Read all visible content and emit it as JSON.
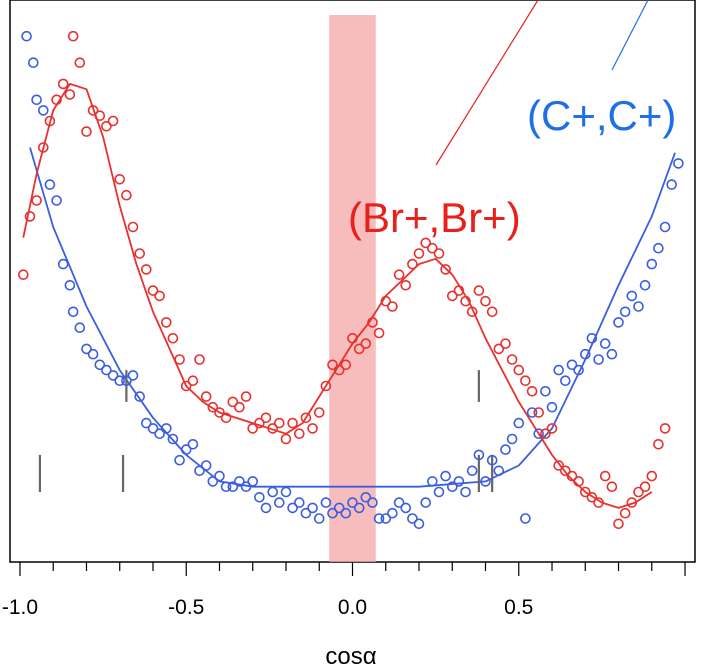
{
  "chart_data": {
    "type": "scatter",
    "title": "",
    "xlabel": "cosα",
    "ylabel": "",
    "xlim": [
      -1.03,
      1.03
    ],
    "ylim": [
      0,
      1
    ],
    "grid": false,
    "x_ticks": [
      "-1.0",
      "-0.5",
      "0.0",
      "0.5"
    ],
    "x_tick_values": [
      -1.0,
      -0.5,
      0.0,
      0.5
    ],
    "shaded_band": {
      "x": [
        -0.07,
        0.07
      ],
      "color": "#f4a6a6"
    },
    "series": [
      {
        "name": "(C+,C+)",
        "color": "#3b5ee0",
        "label_color": "#1f6fe8",
        "points": [
          [
            -0.98,
            0.96
          ],
          [
            -0.96,
            0.91
          ],
          [
            -0.95,
            0.84
          ],
          [
            -0.93,
            0.82
          ],
          [
            -0.91,
            0.68
          ],
          [
            -0.89,
            0.65
          ],
          [
            -0.87,
            0.53
          ],
          [
            -0.85,
            0.49
          ],
          [
            -0.84,
            0.44
          ],
          [
            -0.82,
            0.41
          ],
          [
            -0.8,
            0.37
          ],
          [
            -0.78,
            0.36
          ],
          [
            -0.76,
            0.34
          ],
          [
            -0.74,
            0.33
          ],
          [
            -0.72,
            0.32
          ],
          [
            -0.7,
            0.31
          ],
          [
            -0.68,
            0.31
          ],
          [
            -0.66,
            0.32
          ],
          [
            -0.64,
            0.28
          ],
          [
            -0.62,
            0.23
          ],
          [
            -0.6,
            0.22
          ],
          [
            -0.58,
            0.21
          ],
          [
            -0.56,
            0.22
          ],
          [
            -0.54,
            0.2
          ],
          [
            -0.52,
            0.16
          ],
          [
            -0.5,
            0.18
          ],
          [
            -0.48,
            0.19
          ],
          [
            -0.46,
            0.14
          ],
          [
            -0.44,
            0.15
          ],
          [
            -0.42,
            0.12
          ],
          [
            -0.4,
            0.13
          ],
          [
            -0.38,
            0.11
          ],
          [
            -0.36,
            0.11
          ],
          [
            -0.34,
            0.12
          ],
          [
            -0.32,
            0.11
          ],
          [
            -0.3,
            0.12
          ],
          [
            -0.28,
            0.09
          ],
          [
            -0.26,
            0.07
          ],
          [
            -0.24,
            0.1
          ],
          [
            -0.22,
            0.08
          ],
          [
            -0.2,
            0.1
          ],
          [
            -0.18,
            0.07
          ],
          [
            -0.16,
            0.08
          ],
          [
            -0.14,
            0.06
          ],
          [
            -0.12,
            0.07
          ],
          [
            -0.1,
            0.05
          ],
          [
            -0.08,
            0.08
          ],
          [
            -0.06,
            0.06
          ],
          [
            -0.04,
            0.07
          ],
          [
            -0.02,
            0.06
          ],
          [
            0.0,
            0.08
          ],
          [
            0.02,
            0.07
          ],
          [
            0.04,
            0.09
          ],
          [
            0.06,
            0.08
          ],
          [
            0.08,
            0.05
          ],
          [
            0.1,
            0.05
          ],
          [
            0.12,
            0.06
          ],
          [
            0.14,
            0.08
          ],
          [
            0.16,
            0.07
          ],
          [
            0.18,
            0.05
          ],
          [
            0.2,
            0.04
          ],
          [
            0.22,
            0.08
          ],
          [
            0.24,
            0.12
          ],
          [
            0.26,
            0.1
          ],
          [
            0.28,
            0.13
          ],
          [
            0.3,
            0.11
          ],
          [
            0.32,
            0.12
          ],
          [
            0.34,
            0.1
          ],
          [
            0.36,
            0.14
          ],
          [
            0.38,
            0.17
          ],
          [
            0.4,
            0.12
          ],
          [
            0.42,
            0.16
          ],
          [
            0.44,
            0.14
          ],
          [
            0.46,
            0.18
          ],
          [
            0.48,
            0.2
          ],
          [
            0.5,
            0.23
          ],
          [
            0.52,
            0.05
          ],
          [
            0.54,
            0.25
          ],
          [
            0.56,
            0.21
          ],
          [
            0.58,
            0.29
          ],
          [
            0.6,
            0.26
          ],
          [
            0.62,
            0.33
          ],
          [
            0.64,
            0.31
          ],
          [
            0.66,
            0.34
          ],
          [
            0.68,
            0.33
          ],
          [
            0.7,
            0.36
          ],
          [
            0.72,
            0.39
          ],
          [
            0.74,
            0.35
          ],
          [
            0.76,
            0.38
          ],
          [
            0.78,
            0.36
          ],
          [
            0.8,
            0.42
          ],
          [
            0.82,
            0.44
          ],
          [
            0.84,
            0.47
          ],
          [
            0.86,
            0.45
          ],
          [
            0.88,
            0.49
          ],
          [
            0.9,
            0.53
          ],
          [
            0.92,
            0.56
          ],
          [
            0.94,
            0.6
          ],
          [
            0.96,
            0.68
          ],
          [
            0.98,
            0.72
          ]
        ],
        "fit": [
          [
            -0.97,
            0.75
          ],
          [
            -0.9,
            0.6
          ],
          [
            -0.8,
            0.45
          ],
          [
            -0.7,
            0.33
          ],
          [
            -0.6,
            0.24
          ],
          [
            -0.5,
            0.17
          ],
          [
            -0.4,
            0.12
          ],
          [
            -0.3,
            0.11
          ],
          [
            -0.2,
            0.11
          ],
          [
            0.0,
            0.11
          ],
          [
            0.2,
            0.11
          ],
          [
            0.4,
            0.12
          ],
          [
            0.5,
            0.15
          ],
          [
            0.6,
            0.22
          ],
          [
            0.7,
            0.35
          ],
          [
            0.8,
            0.49
          ],
          [
            0.9,
            0.62
          ],
          [
            0.97,
            0.74
          ]
        ]
      },
      {
        "name": "(Br+,Br+)",
        "color": "#e8312f",
        "label_color": "#e8201c",
        "points": [
          [
            -0.99,
            0.51
          ],
          [
            -0.97,
            0.62
          ],
          [
            -0.95,
            0.65
          ],
          [
            -0.93,
            0.75
          ],
          [
            -0.91,
            0.8
          ],
          [
            -0.89,
            0.84
          ],
          [
            -0.87,
            0.87
          ],
          [
            -0.85,
            0.85
          ],
          [
            -0.84,
            0.96
          ],
          [
            -0.82,
            0.91
          ],
          [
            -0.8,
            0.78
          ],
          [
            -0.78,
            0.82
          ],
          [
            -0.76,
            0.81
          ],
          [
            -0.74,
            0.79
          ],
          [
            -0.72,
            0.8
          ],
          [
            -0.7,
            0.69
          ],
          [
            -0.68,
            0.66
          ],
          [
            -0.66,
            0.6
          ],
          [
            -0.64,
            0.55
          ],
          [
            -0.62,
            0.52
          ],
          [
            -0.6,
            0.48
          ],
          [
            -0.58,
            0.47
          ],
          [
            -0.56,
            0.42
          ],
          [
            -0.54,
            0.39
          ],
          [
            -0.52,
            0.35
          ],
          [
            -0.5,
            0.3
          ],
          [
            -0.48,
            0.31
          ],
          [
            -0.46,
            0.35
          ],
          [
            -0.44,
            0.28
          ],
          [
            -0.42,
            0.26
          ],
          [
            -0.4,
            0.25
          ],
          [
            -0.38,
            0.24
          ],
          [
            -0.36,
            0.27
          ],
          [
            -0.34,
            0.26
          ],
          [
            -0.32,
            0.28
          ],
          [
            -0.3,
            0.22
          ],
          [
            -0.28,
            0.23
          ],
          [
            -0.26,
            0.24
          ],
          [
            -0.24,
            0.22
          ],
          [
            -0.22,
            0.23
          ],
          [
            -0.2,
            0.2
          ],
          [
            -0.18,
            0.23
          ],
          [
            -0.16,
            0.21
          ],
          [
            -0.14,
            0.24
          ],
          [
            -0.12,
            0.22
          ],
          [
            -0.1,
            0.25
          ],
          [
            -0.08,
            0.3
          ],
          [
            -0.06,
            0.34
          ],
          [
            -0.04,
            0.33
          ],
          [
            -0.02,
            0.34
          ],
          [
            0.0,
            0.39
          ],
          [
            0.02,
            0.37
          ],
          [
            0.04,
            0.38
          ],
          [
            0.06,
            0.42
          ],
          [
            0.08,
            0.4
          ],
          [
            0.1,
            0.46
          ],
          [
            0.12,
            0.45
          ],
          [
            0.14,
            0.51
          ],
          [
            0.16,
            0.49
          ],
          [
            0.18,
            0.53
          ],
          [
            0.2,
            0.55
          ],
          [
            0.22,
            0.57
          ],
          [
            0.24,
            0.56
          ],
          [
            0.26,
            0.55
          ],
          [
            0.28,
            0.52
          ],
          [
            0.3,
            0.47
          ],
          [
            0.32,
            0.48
          ],
          [
            0.34,
            0.46
          ],
          [
            0.36,
            0.44
          ],
          [
            0.38,
            0.48
          ],
          [
            0.4,
            0.46
          ],
          [
            0.42,
            0.44
          ],
          [
            0.44,
            0.37
          ],
          [
            0.46,
            0.38
          ],
          [
            0.48,
            0.35
          ],
          [
            0.5,
            0.33
          ],
          [
            0.52,
            0.31
          ],
          [
            0.54,
            0.29
          ],
          [
            0.56,
            0.25
          ],
          [
            0.58,
            0.21
          ],
          [
            0.6,
            0.22
          ],
          [
            0.62,
            0.15
          ],
          [
            0.64,
            0.14
          ],
          [
            0.66,
            0.13
          ],
          [
            0.68,
            0.12
          ],
          [
            0.7,
            0.1
          ],
          [
            0.72,
            0.09
          ],
          [
            0.74,
            0.08
          ],
          [
            0.76,
            0.13
          ],
          [
            0.78,
            0.11
          ],
          [
            0.8,
            0.04
          ],
          [
            0.82,
            0.06
          ],
          [
            0.84,
            0.08
          ],
          [
            0.86,
            0.1
          ],
          [
            0.88,
            0.11
          ],
          [
            0.9,
            0.13
          ],
          [
            0.92,
            0.19
          ],
          [
            0.94,
            0.22
          ]
        ],
        "fit": [
          [
            -0.99,
            0.58
          ],
          [
            -0.95,
            0.7
          ],
          [
            -0.9,
            0.82
          ],
          [
            -0.85,
            0.87
          ],
          [
            -0.8,
            0.86
          ],
          [
            -0.75,
            0.77
          ],
          [
            -0.7,
            0.64
          ],
          [
            -0.65,
            0.53
          ],
          [
            -0.6,
            0.44
          ],
          [
            -0.55,
            0.37
          ],
          [
            -0.5,
            0.3
          ],
          [
            -0.45,
            0.27
          ],
          [
            -0.4,
            0.25
          ],
          [
            -0.3,
            0.23
          ],
          [
            -0.2,
            0.21
          ],
          [
            -0.15,
            0.23
          ],
          [
            -0.1,
            0.28
          ],
          [
            -0.05,
            0.33
          ],
          [
            0.0,
            0.38
          ],
          [
            0.05,
            0.42
          ],
          [
            0.1,
            0.47
          ],
          [
            0.15,
            0.5
          ],
          [
            0.2,
            0.53
          ],
          [
            0.25,
            0.54
          ],
          [
            0.3,
            0.51
          ],
          [
            0.35,
            0.46
          ],
          [
            0.4,
            0.39
          ],
          [
            0.45,
            0.33
          ],
          [
            0.5,
            0.27
          ],
          [
            0.55,
            0.22
          ],
          [
            0.6,
            0.17
          ],
          [
            0.65,
            0.13
          ],
          [
            0.7,
            0.1
          ],
          [
            0.75,
            0.08
          ],
          [
            0.8,
            0.07
          ],
          [
            0.85,
            0.08
          ],
          [
            0.9,
            0.1
          ]
        ]
      }
    ],
    "markers": [
      {
        "x": -0.94,
        "y0": 0.1,
        "y1": 0.17
      },
      {
        "x": -0.69,
        "y0": 0.1,
        "y1": 0.17
      },
      {
        "x": -0.68,
        "y0": 0.27,
        "y1": 0.33
      },
      {
        "x": 0.38,
        "y0": 0.27,
        "y1": 0.33
      },
      {
        "x": 0.38,
        "y0": 0.1,
        "y1": 0.17
      },
      {
        "x": 0.42,
        "y0": 0.1,
        "y1": 0.17
      }
    ]
  }
}
